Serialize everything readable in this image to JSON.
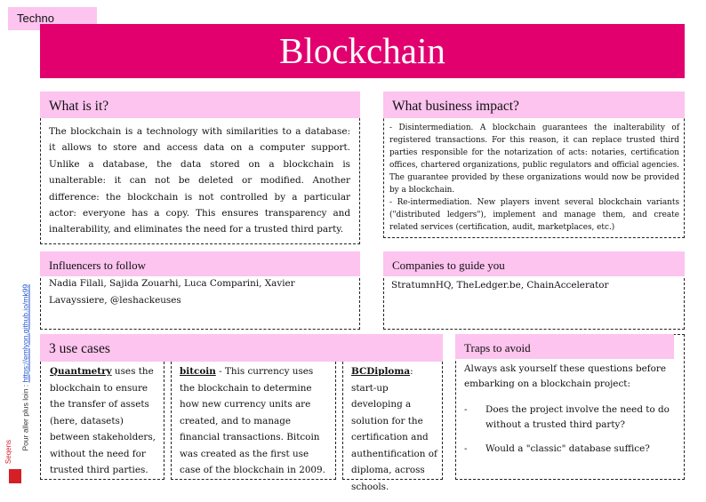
{
  "tag": "Techno",
  "title": "Blockchain",
  "what_is_it": {
    "heading": "What is it?",
    "body": "The blockchain is a technology with similarities to a database: it allows to store and access data on a computer support. Unlike a database, the data stored on a blockchain is unalterable: it can not be deleted or modified. Another difference: the blockchain is not controlled by a particular actor: everyone has a copy. This ensures transparency and inalterability, and eliminates the need for a trusted third party."
  },
  "business_impact": {
    "heading": "What business impact?",
    "point1": "- Disintermediation. A blockchain guarantees the inalterability of registered transactions. For this reason, it can replace trusted third parties responsible for the notarization of acts: notaries, certification offices, chartered organizations, public regulators and official agencies. The guarantee provided by these organizations would now be provided by a blockchain.",
    "point2": "- Re-intermediation. New players invent several blockchain variants (\"distributed ledgers\"), implement and manage them, and create related services (certification, audit, marketplaces, etc.)"
  },
  "influencers": {
    "heading": "Influencers to follow",
    "body": "Nadia Filali, Sajida Zouarhi, Luca Comparini, Xavier Lavayssiere, @leshackeuses"
  },
  "companies": {
    "heading": "Companies to guide you",
    "body": "StratumnHQ, TheLedger.be, ChainAccelerator"
  },
  "use_cases": {
    "heading": "3 use cases",
    "case1_name": "Quantmetry",
    "case1_text": " uses the blockchain to ensure the transfer of assets (here, datasets) between stakeholders, without the need for trusted third parties.",
    "case2_name": "bitcoin",
    "case2_text": " - This currency uses the blockchain to determine how new currency units are created, and to manage financial transactions. Bitcoin was created as the first use case of the blockchain in 2009.",
    "case3_name": "BCDiploma",
    "case3_text": ": start-up developing a solution for the certification and authentification of diploma, across schools."
  },
  "traps": {
    "heading": "Traps to avoid",
    "intro": "Always ask yourself these questions before embarking on a blockchain project:",
    "items": [
      "Does the project involve the need to do without a trusted third party?",
      "Would a \"classic\" database suffice?"
    ],
    "dash": "-"
  },
  "sidebar": {
    "prefix": "Pour aller plus loin : ",
    "link": "https://emlyon.github.io/mk99"
  },
  "logo": {
    "text": "Seqens"
  },
  "colors": {
    "banner": "#e2006f",
    "header_pink": "#fcc4ef"
  }
}
